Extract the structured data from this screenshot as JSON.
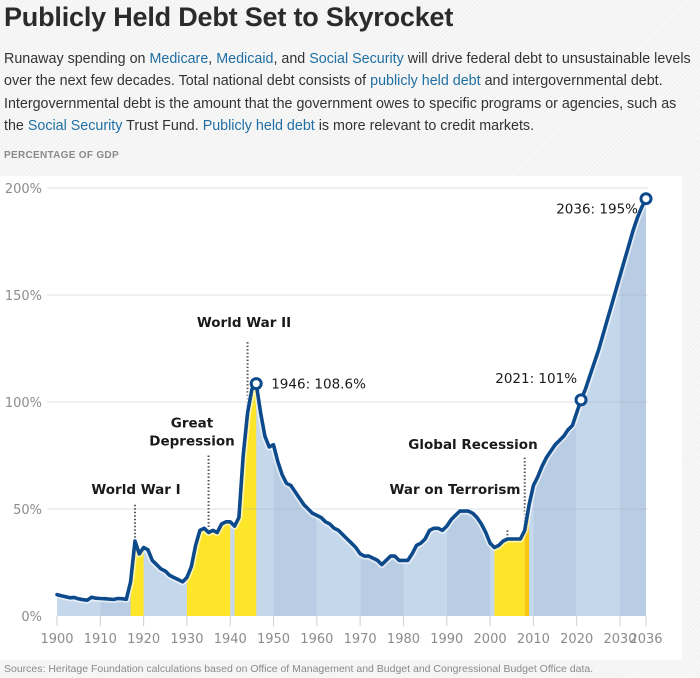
{
  "header": {
    "title": "Publicly Held Debt Set to Skyrocket",
    "intro": [
      {
        "text": "Runaway spending on ",
        "link": false
      },
      {
        "text": "Medicare",
        "link": true
      },
      {
        "text": ", ",
        "link": false
      },
      {
        "text": "Medicaid",
        "link": true
      },
      {
        "text": ", and ",
        "link": false
      },
      {
        "text": "Social Security",
        "link": true
      },
      {
        "text": " will drive federal debt to unsustainable levels over the next few decades. Total national debt consists of ",
        "link": false
      },
      {
        "text": "publicly held debt",
        "link": true
      },
      {
        "text": " and intergovernmental debt. Intergovernmental debt is the amount that the government owes to specific programs or agencies, such as the ",
        "link": false
      },
      {
        "text": "Social Security",
        "link": true
      },
      {
        "text": " Trust Fund. ",
        "link": false
      },
      {
        "text": "Publicly held debt",
        "link": true
      },
      {
        "text": " is more relevant to credit markets.",
        "link": false
      }
    ]
  },
  "footer": {
    "sources": "Sources: Heritage Foundation calculations based on Office of Management and Budget and Congressional Budget Office data."
  },
  "colors": {
    "line": "#0d4a8c",
    "area_light": "#c5d8eb",
    "area_dark": "#b8cde3",
    "war_band": "#fde52a",
    "recession_band": "#f9c80e",
    "grid": "#dedede"
  },
  "chart_data": {
    "type": "area",
    "title": "Publicly Held Debt Set to Skyrocket",
    "ylabel": "PERCENTAGE OF GDP",
    "xlabel": "",
    "xlim": [
      1900,
      2036
    ],
    "ylim": [
      0,
      200
    ],
    "grid": true,
    "x_ticks": [
      1900,
      1910,
      1920,
      1930,
      1940,
      1950,
      1960,
      1970,
      1980,
      1990,
      2000,
      2010,
      2020,
      2030,
      2036
    ],
    "y_ticks": [
      0,
      50,
      100,
      150,
      200
    ],
    "y_tick_labels": [
      "0%",
      "50%",
      "100%",
      "150%",
      "200%"
    ],
    "series": [
      {
        "name": "Publicly held debt (% of GDP)",
        "x": [
          1900,
          1901,
          1902,
          1903,
          1904,
          1905,
          1906,
          1907,
          1908,
          1909,
          1910,
          1911,
          1912,
          1913,
          1914,
          1915,
          1916,
          1917,
          1918,
          1919,
          1920,
          1921,
          1922,
          1923,
          1924,
          1925,
          1926,
          1927,
          1928,
          1929,
          1930,
          1931,
          1932,
          1933,
          1934,
          1935,
          1936,
          1937,
          1938,
          1939,
          1940,
          1941,
          1942,
          1943,
          1944,
          1945,
          1946,
          1947,
          1948,
          1949,
          1950,
          1951,
          1952,
          1953,
          1954,
          1955,
          1956,
          1957,
          1958,
          1959,
          1960,
          1961,
          1962,
          1963,
          1964,
          1965,
          1966,
          1967,
          1968,
          1969,
          1970,
          1971,
          1972,
          1973,
          1974,
          1975,
          1976,
          1977,
          1978,
          1979,
          1980,
          1981,
          1982,
          1983,
          1984,
          1985,
          1986,
          1987,
          1988,
          1989,
          1990,
          1991,
          1992,
          1993,
          1994,
          1995,
          1996,
          1997,
          1998,
          1999,
          2000,
          2001,
          2002,
          2003,
          2004,
          2005,
          2006,
          2007,
          2008,
          2009,
          2010,
          2011,
          2012,
          2013,
          2014,
          2015,
          2016,
          2017,
          2018,
          2019,
          2020,
          2021,
          2022,
          2023,
          2024,
          2025,
          2026,
          2027,
          2028,
          2029,
          2030,
          2031,
          2032,
          2033,
          2034,
          2035,
          2036
        ],
        "values": [
          10,
          9.5,
          9,
          8.5,
          8.7,
          8,
          7.6,
          7.4,
          8.8,
          8.3,
          8.2,
          8.1,
          7.9,
          7.7,
          8.2,
          8.1,
          7.8,
          16,
          35,
          29,
          32,
          31,
          26,
          24,
          22,
          21,
          19,
          18,
          17,
          16,
          18,
          23,
          33,
          40,
          41,
          39,
          40,
          39,
          43,
          44,
          44,
          42,
          46,
          75,
          95,
          106,
          108.6,
          95,
          84,
          79,
          80,
          72,
          66,
          62,
          61,
          58,
          55,
          52,
          50,
          48,
          47,
          46,
          44,
          43,
          41,
          40,
          38,
          36,
          34,
          32,
          29,
          28,
          28,
          27,
          26,
          24,
          26,
          28,
          28,
          26,
          26,
          26,
          29,
          33,
          34,
          36,
          40,
          41,
          41,
          40,
          42,
          45,
          47,
          49,
          49,
          49,
          48,
          46,
          43,
          39,
          34,
          32,
          33,
          35,
          36,
          36,
          36,
          36,
          40,
          52,
          61,
          65,
          70,
          74,
          77,
          80,
          82,
          84,
          87,
          89,
          95,
          101,
          106,
          112,
          118,
          124,
          131,
          138,
          145,
          152,
          159,
          166,
          173,
          180,
          186,
          191,
          195
        ]
      }
    ],
    "bands": [
      {
        "label": "World War I",
        "start": 1917,
        "end": 1920,
        "kind": "war"
      },
      {
        "label": "Great Depression",
        "start": 1930,
        "end": 1940,
        "kind": "war"
      },
      {
        "label": "World War II",
        "start": 1941,
        "end": 1946,
        "kind": "war"
      },
      {
        "label": "War on Terrorism",
        "start": 2001,
        "end": 2008,
        "kind": "war"
      },
      {
        "label": "Global Recession",
        "start": 2008,
        "end": 2009,
        "kind": "recession"
      }
    ],
    "annotations": [
      {
        "text": "World War I",
        "x": 1918,
        "label_y": 57,
        "line_top": 52
      },
      {
        "text": "Great",
        "text2": "Depression",
        "x": 1935,
        "label_y": 88,
        "line_top": 75
      },
      {
        "text": "World War II",
        "x": 1944,
        "label_y": 135,
        "line_top": 128
      },
      {
        "text": "War on Terrorism",
        "x": 2004,
        "label_y": 57,
        "line_top": 40
      },
      {
        "text": "Global Recession",
        "x": 2008,
        "label_y": 78,
        "line_top": 74
      }
    ],
    "callouts": [
      {
        "text": "1946: 108.6%",
        "x": 1946,
        "y": 108.6,
        "align": "right"
      },
      {
        "text": "2021: 101%",
        "x": 2021,
        "y": 101,
        "align": "left"
      },
      {
        "text": "2036: 195%",
        "x": 2036,
        "y": 195,
        "align": "left"
      }
    ]
  }
}
